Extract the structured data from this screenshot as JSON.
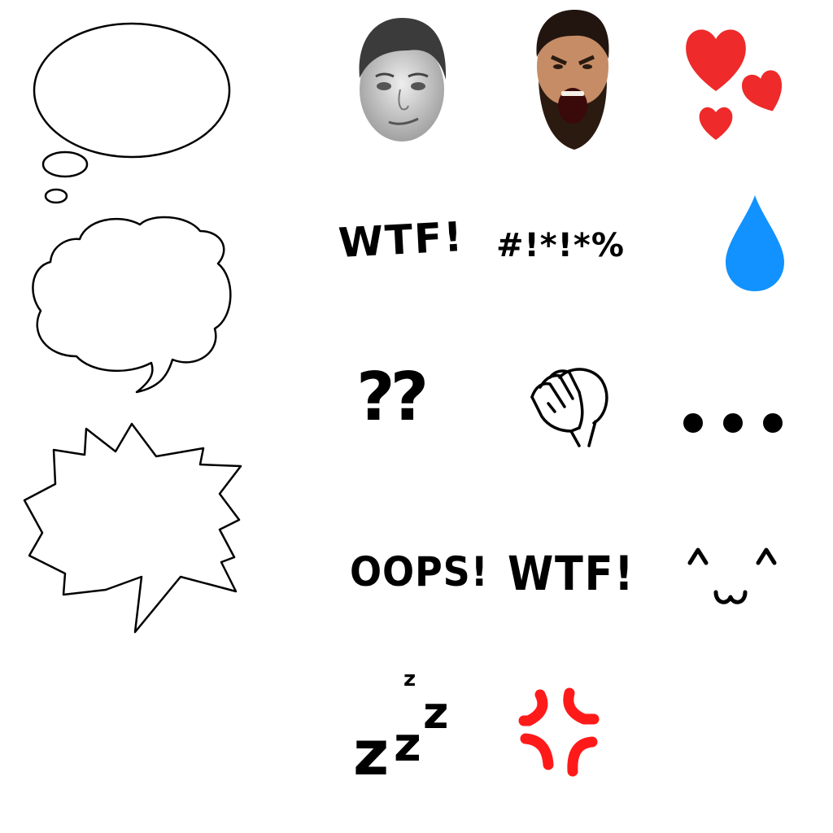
{
  "colors": {
    "background": "#ffffff",
    "ink": "#000000",
    "heart": "#ee2a2a",
    "drop": "#1192ff",
    "anger": "#ff1a1a",
    "skin_gray": "#d6d6d6",
    "skin_warm": "#c08a66",
    "beard": "#2a1a10"
  },
  "bubbles": [
    {
      "kind": "thought-bubble"
    },
    {
      "kind": "cloud-speech-bubble"
    },
    {
      "kind": "spiky-shout-bubble"
    }
  ],
  "stickers": {
    "wtf_brush": "WTF!",
    "grawlix": "#!*!*%",
    "question_marks": "??",
    "oops": "OOPS!",
    "wtf_bold": "WTF!",
    "zzz": [
      "z",
      "z",
      "z",
      "z"
    ]
  },
  "icons": [
    "kappa-face-icon",
    "shouting-spartan-face-icon",
    "hearts-icon",
    "sweat-drop-icon",
    "facepalm-icon",
    "ellipsis-dots-icon",
    "happy-kaomoji-face-icon",
    "sleep-zzz-icon",
    "anger-vein-icon"
  ]
}
